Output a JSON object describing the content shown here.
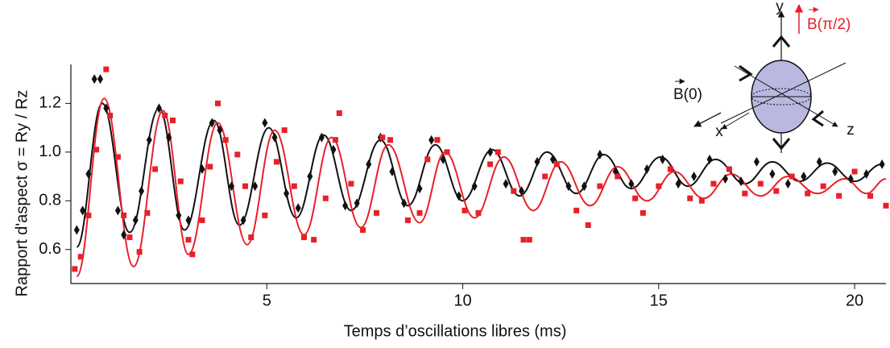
{
  "chart_data": {
    "type": "line",
    "xlabel": "Temps d’oscillations libres (ms)",
    "ylabel": "Rapport d'aspect  σ = Ry / Rz",
    "xlim": [
      0,
      20.8
    ],
    "ylim": [
      0.46,
      1.36
    ],
    "xticks": [
      5,
      10,
      15,
      20
    ],
    "yticks": [
      0.6,
      0.8,
      {
        "value": 1,
        "label": "1.0"
      },
      1.2
    ],
    "annotations": {
      "y": "y",
      "x": "x",
      "z": "z",
      "b0": "B(0)",
      "bpi2": "B(π/2)"
    },
    "series": [
      {
        "style": "line",
        "color": "#111111",
        "x": [
          0.15,
          0.8,
          1.5,
          2.25,
          2.9,
          3.65,
          4.3,
          5.05,
          5.75,
          6.45,
          7.15,
          7.9,
          8.6,
          9.3,
          10.0,
          10.75,
          11.45,
          12.15,
          12.9,
          13.6,
          14.3,
          15.05,
          15.75,
          16.45,
          17.2,
          17.9,
          18.6,
          19.3,
          20.0,
          20.7
        ],
        "values": [
          0.61,
          1.2,
          0.67,
          1.18,
          0.68,
          1.13,
          0.7,
          1.1,
          0.73,
          1.07,
          0.76,
          1.05,
          0.78,
          1.03,
          0.8,
          1.01,
          0.82,
          1.0,
          0.83,
          0.99,
          0.85,
          0.98,
          0.86,
          0.97,
          0.87,
          0.96,
          0.88,
          0.955,
          0.88,
          0.95
        ]
      },
      {
        "style": "line",
        "color": "#e8202a",
        "x": [
          0.15,
          0.85,
          1.6,
          2.35,
          3.0,
          3.75,
          4.5,
          5.2,
          5.95,
          6.65,
          7.4,
          8.1,
          8.9,
          9.55,
          10.3,
          11.05,
          11.8,
          12.5,
          13.25,
          13.95,
          14.7,
          15.4,
          16.15,
          16.85,
          17.6,
          18.3,
          19.05,
          19.75,
          20.3,
          20.8
        ],
        "values": [
          0.49,
          1.22,
          0.53,
          1.17,
          0.58,
          1.12,
          0.62,
          1.09,
          0.66,
          1.06,
          0.69,
          1.03,
          0.71,
          1.0,
          0.73,
          0.98,
          0.76,
          0.96,
          0.78,
          0.94,
          0.8,
          0.92,
          0.81,
          0.91,
          0.82,
          0.9,
          0.83,
          0.89,
          0.83,
          0.89
        ]
      },
      {
        "style": "diamond",
        "color": "#111111",
        "x": [
          0.15,
          0.3,
          0.45,
          0.6,
          0.75,
          0.9,
          1.2,
          1.35,
          1.65,
          1.8,
          2.0,
          2.25,
          2.5,
          2.75,
          3.0,
          3.35,
          3.6,
          3.8,
          4.1,
          4.4,
          4.7,
          4.95,
          5.2,
          5.5,
          5.8,
          6.1,
          6.4,
          6.7,
          7.0,
          7.3,
          7.6,
          7.9,
          8.2,
          8.5,
          8.9,
          9.2,
          9.5,
          9.9,
          10.3,
          10.7,
          11.1,
          11.5,
          11.9,
          12.3,
          12.7,
          13.1,
          13.5,
          13.9,
          14.3,
          14.7,
          15.1,
          15.5,
          15.9,
          16.3,
          16.7,
          17.1,
          17.5,
          17.9,
          18.3,
          18.7,
          19.1,
          19.5,
          19.9,
          20.3,
          20.7
        ],
        "values": [
          0.68,
          0.76,
          0.91,
          1.3,
          1.3,
          1.18,
          0.76,
          0.66,
          0.72,
          0.84,
          1.05,
          1.18,
          1.06,
          0.74,
          0.72,
          0.93,
          1.12,
          1.09,
          0.86,
          0.72,
          0.86,
          1.12,
          1.06,
          0.83,
          0.77,
          0.9,
          1.06,
          1.01,
          0.78,
          0.79,
          0.95,
          1.06,
          0.92,
          0.79,
          0.85,
          1.05,
          0.97,
          0.82,
          0.86,
          1.0,
          0.87,
          0.84,
          0.96,
          0.97,
          0.86,
          0.86,
          0.99,
          0.92,
          0.87,
          0.93,
          0.97,
          0.87,
          0.9,
          0.97,
          0.89,
          0.88,
          0.96,
          0.91,
          0.87,
          0.9,
          0.96,
          0.92,
          0.89,
          0.91,
          0.95
        ]
      },
      {
        "style": "square",
        "color": "#e8202a",
        "x": [
          0.1,
          0.25,
          0.45,
          0.65,
          0.9,
          1.0,
          1.2,
          1.35,
          1.5,
          1.75,
          1.95,
          2.15,
          2.4,
          2.6,
          2.8,
          3.0,
          3.1,
          3.35,
          3.55,
          3.75,
          3.95,
          4.25,
          4.45,
          4.6,
          4.95,
          5.25,
          5.45,
          5.7,
          5.95,
          6.2,
          6.5,
          6.75,
          6.85,
          7.15,
          7.45,
          7.8,
          7.95,
          8.15,
          8.6,
          8.9,
          9.1,
          9.35,
          9.6,
          10.05,
          10.4,
          10.7,
          10.9,
          11.3,
          11.55,
          11.7,
          12.1,
          12.4,
          12.9,
          13.2,
          13.5,
          13.95,
          14.4,
          14.6,
          15.0,
          15.3,
          15.8,
          16.1,
          16.4,
          16.8,
          17.2,
          17.6,
          18.0,
          18.4,
          18.8,
          19.2,
          19.6,
          20.0,
          20.4,
          20.8
        ],
        "values": [
          0.52,
          0.57,
          0.74,
          1.01,
          1.34,
          1.15,
          0.98,
          0.74,
          0.65,
          0.59,
          0.75,
          0.93,
          1.15,
          1.13,
          0.88,
          0.64,
          0.58,
          0.72,
          0.94,
          1.2,
          1.05,
          0.99,
          0.86,
          0.65,
          0.74,
          0.96,
          1.09,
          0.86,
          0.65,
          0.64,
          0.81,
          1.05,
          1.16,
          0.87,
          0.68,
          0.75,
          1.06,
          1.05,
          0.72,
          0.75,
          0.97,
          1.05,
          1.0,
          0.76,
          0.75,
          0.95,
          1.0,
          0.84,
          0.64,
          0.64,
          0.9,
          0.95,
          0.76,
          0.7,
          0.86,
          0.9,
          0.81,
          0.75,
          0.86,
          0.93,
          0.81,
          0.8,
          0.87,
          0.93,
          0.83,
          0.87,
          0.84,
          0.9,
          0.83,
          0.86,
          0.82,
          0.92,
          0.82,
          0.78
        ]
      }
    ]
  }
}
